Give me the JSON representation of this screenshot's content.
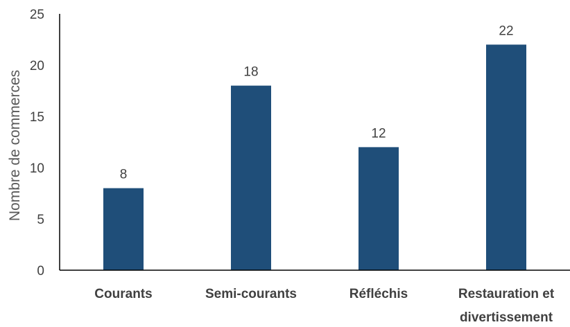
{
  "chart_data": {
    "type": "bar",
    "categories": [
      [
        "Courants"
      ],
      [
        "Semi-courants"
      ],
      [
        "Réfléchis"
      ],
      [
        "Restauration et",
        "divertissement"
      ]
    ],
    "values": [
      8,
      18,
      12,
      22
    ],
    "data_labels": [
      "8",
      "18",
      "12",
      "22"
    ],
    "title": "",
    "xlabel": "",
    "ylabel": "Nombre de commerces",
    "ylim": [
      0,
      25
    ],
    "yticks": [
      0,
      5,
      10,
      15,
      20,
      25
    ],
    "grid": false,
    "legend": "none",
    "bar_color": "#1f4e79",
    "axis_color": "#000000"
  }
}
